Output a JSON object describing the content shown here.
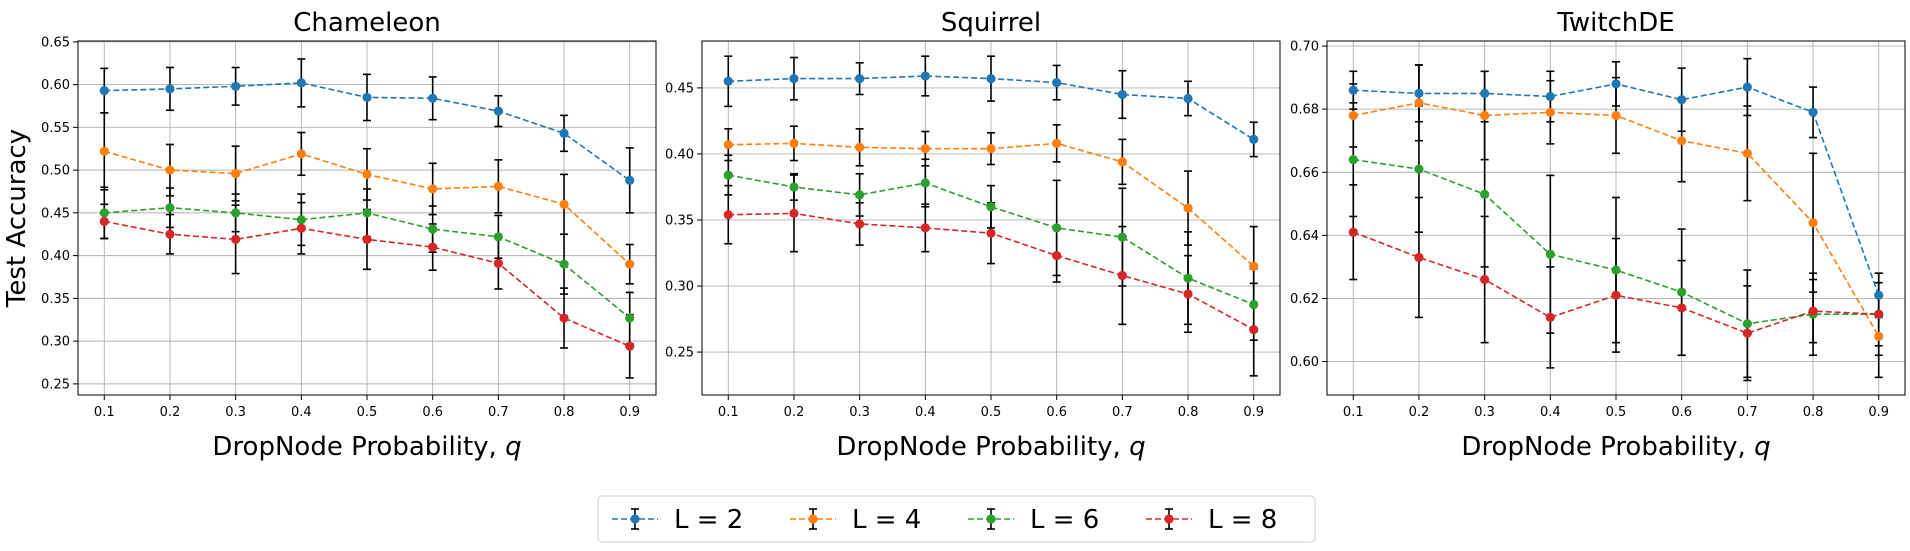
{
  "chart_data": [
    {
      "type": "line",
      "title": "Chameleon",
      "xlabel": "DropNode Probability, ",
      "xlabel_symbol": "q",
      "ylabel": "Test Accuracy",
      "x": [
        0.1,
        0.2,
        0.3,
        0.4,
        0.5,
        0.6,
        0.7,
        0.8,
        0.9
      ],
      "x_ticklabels": [
        "0.1",
        "0.2",
        "0.3",
        "0.4",
        "0.5",
        "0.6",
        "0.7",
        "0.8",
        "0.9"
      ],
      "xlim": [
        0.06,
        0.94
      ],
      "ylim": [
        0.237,
        0.651
      ],
      "y_ticks": [
        0.25,
        0.3,
        0.35,
        0.4,
        0.45,
        0.5,
        0.55,
        0.6,
        0.65
      ],
      "y_ticklabels": [
        "0.25",
        "0.30",
        "0.35",
        "0.40",
        "0.45",
        "0.50",
        "0.55",
        "0.60",
        "0.65"
      ],
      "grid": true,
      "series": [
        {
          "name": "L = 2",
          "color": "#1f77b4",
          "values": [
            0.593,
            0.595,
            0.598,
            0.602,
            0.585,
            0.584,
            0.569,
            0.543,
            0.488
          ],
          "errors": [
            0.026,
            0.025,
            0.022,
            0.028,
            0.027,
            0.025,
            0.018,
            0.021,
            0.038
          ]
        },
        {
          "name": "L = 4",
          "color": "#ff7f0e",
          "values": [
            0.522,
            0.5,
            0.496,
            0.519,
            0.495,
            0.478,
            0.481,
            0.46,
            0.39
          ],
          "errors": [
            0.045,
            0.03,
            0.032,
            0.025,
            0.03,
            0.03,
            0.031,
            0.035,
            0.023
          ]
        },
        {
          "name": "L = 6",
          "color": "#2ca02c",
          "values": [
            0.45,
            0.456,
            0.45,
            0.442,
            0.45,
            0.431,
            0.422,
            0.39,
            0.327
          ],
          "errors": [
            0.03,
            0.023,
            0.022,
            0.03,
            0.028,
            0.027,
            0.025,
            0.035,
            0.03
          ]
        },
        {
          "name": "L = 8",
          "color": "#d62728",
          "values": [
            0.44,
            0.425,
            0.419,
            0.432,
            0.419,
            0.41,
            0.391,
            0.327,
            0.294
          ],
          "errors": [
            0.02,
            0.023,
            0.04,
            0.03,
            0.035,
            0.027,
            0.03,
            0.035,
            0.037
          ]
        }
      ]
    },
    {
      "type": "line",
      "title": "Squirrel",
      "xlabel": "DropNode Probability, ",
      "xlabel_symbol": "q",
      "ylabel": "",
      "x": [
        0.1,
        0.2,
        0.3,
        0.4,
        0.5,
        0.6,
        0.7,
        0.8,
        0.9
      ],
      "x_ticklabels": [
        "0.1",
        "0.2",
        "0.3",
        "0.4",
        "0.5",
        "0.6",
        "0.7",
        "0.8",
        "0.9"
      ],
      "xlim": [
        0.06,
        0.94
      ],
      "ylim": [
        0.2175,
        0.4855
      ],
      "y_ticks": [
        0.25,
        0.3,
        0.35,
        0.4,
        0.45
      ],
      "y_ticklabels": [
        "0.25",
        "0.30",
        "0.35",
        "0.40",
        "0.45"
      ],
      "grid": true,
      "series": [
        {
          "name": "L = 2",
          "color": "#1f77b4",
          "values": [
            0.455,
            0.457,
            0.457,
            0.459,
            0.457,
            0.454,
            0.445,
            0.442,
            0.411
          ],
          "errors": [
            0.019,
            0.016,
            0.012,
            0.015,
            0.017,
            0.013,
            0.018,
            0.013,
            0.013
          ]
        },
        {
          "name": "L = 4",
          "color": "#ff7f0e",
          "values": [
            0.407,
            0.408,
            0.405,
            0.404,
            0.404,
            0.408,
            0.394,
            0.359,
            0.315
          ],
          "errors": [
            0.012,
            0.013,
            0.014,
            0.013,
            0.012,
            0.014,
            0.017,
            0.028,
            0.03
          ]
        },
        {
          "name": "L = 6",
          "color": "#2ca02c",
          "values": [
            0.384,
            0.375,
            0.369,
            0.378,
            0.36,
            0.344,
            0.337,
            0.306,
            0.286
          ],
          "errors": [
            0.015,
            0.01,
            0.016,
            0.018,
            0.016,
            0.036,
            0.037,
            0.035,
            0.027
          ]
        },
        {
          "name": "L = 8",
          "color": "#d62728",
          "values": [
            0.354,
            0.355,
            0.347,
            0.344,
            0.34,
            0.323,
            0.308,
            0.294,
            0.267
          ],
          "errors": [
            0.022,
            0.029,
            0.016,
            0.018,
            0.023,
            0.02,
            0.037,
            0.029,
            0.035
          ]
        }
      ]
    },
    {
      "type": "line",
      "title": "TwitchDE",
      "xlabel": "DropNode Probability, ",
      "xlabel_symbol": "q",
      "ylabel": "",
      "x": [
        0.1,
        0.2,
        0.3,
        0.4,
        0.5,
        0.6,
        0.7,
        0.8,
        0.9
      ],
      "x_ticklabels": [
        "0.1",
        "0.2",
        "0.3",
        "0.4",
        "0.5",
        "0.6",
        "0.7",
        "0.8",
        "0.9"
      ],
      "xlim": [
        0.06,
        0.94
      ],
      "ylim": [
        0.5894,
        0.7016
      ],
      "y_ticks": [
        0.6,
        0.62,
        0.64,
        0.66,
        0.68,
        0.7
      ],
      "y_ticklabels": [
        "0.60",
        "0.62",
        "0.64",
        "0.66",
        "0.68",
        "0.70"
      ],
      "grid": true,
      "series": [
        {
          "name": "L = 2",
          "color": "#1f77b4",
          "values": [
            0.686,
            0.685,
            0.685,
            0.684,
            0.688,
            0.683,
            0.687,
            0.679,
            0.621
          ],
          "errors": [
            0.006,
            0.009,
            0.007,
            0.008,
            0.007,
            0.01,
            0.009,
            0.008,
            0.007
          ]
        },
        {
          "name": "L = 4",
          "color": "#ff7f0e",
          "values": [
            0.678,
            0.682,
            0.678,
            0.679,
            0.678,
            0.67,
            0.666,
            0.644,
            0.608
          ],
          "errors": [
            0.01,
            0.012,
            0.014,
            0.01,
            0.012,
            0.013,
            0.015,
            0.022,
            0.013
          ]
        },
        {
          "name": "L = 6",
          "color": "#2ca02c",
          "values": [
            0.664,
            0.661,
            0.653,
            0.634,
            0.629,
            0.622,
            0.612,
            0.615,
            0.615
          ],
          "errors": [
            0.018,
            0.02,
            0.023,
            0.025,
            0.023,
            0.02,
            0.017,
            0.013,
            0.013
          ]
        },
        {
          "name": "L = 8",
          "color": "#d62728",
          "values": [
            0.641,
            0.633,
            0.626,
            0.614,
            0.621,
            0.617,
            0.609,
            0.616,
            0.615
          ],
          "errors": [
            0.015,
            0.019,
            0.02,
            0.016,
            0.018,
            0.015,
            0.015,
            0.01,
            0.01
          ]
        }
      ]
    }
  ],
  "legend": {
    "placement": "bottom-center",
    "entries": [
      "L = 2",
      "L = 4",
      "L = 6",
      "L = 8"
    ],
    "colors": [
      "#1f77b4",
      "#ff7f0e",
      "#2ca02c",
      "#d62728"
    ]
  }
}
